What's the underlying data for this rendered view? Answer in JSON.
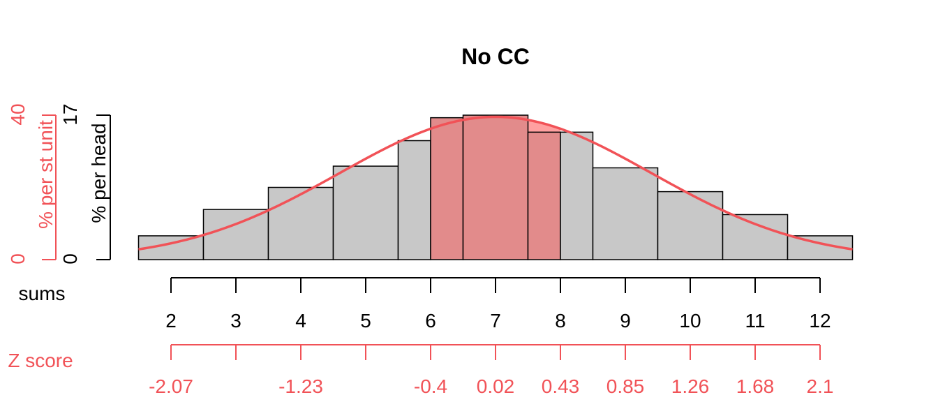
{
  "chart_data": {
    "type": "bar",
    "title": "No CC",
    "xlabel": "sums",
    "z_label": "Z score",
    "ylabel_left": "% per head",
    "ylabel_left_outer": "% per st unit",
    "ylim": [
      0,
      17
    ],
    "ylim_outer": [
      0,
      40
    ],
    "y_tick_labels": [
      "0",
      "17"
    ],
    "y_outer_tick_labels": [
      "0",
      "40"
    ],
    "bar_edges": [
      1.5,
      2.5,
      3.5,
      4.5,
      5.5,
      6.0,
      6.5,
      7.5,
      8.0,
      8.5,
      9.5,
      10.5,
      11.5,
      12.5
    ],
    "bar_values": [
      2.8,
      5.9,
      8.5,
      11.0,
      14.0,
      16.7,
      17.0,
      15.0,
      15.0,
      10.8,
      8.0,
      5.3,
      2.8
    ],
    "highlight_range": [
      6.0,
      8.0
    ],
    "x_ticks": [
      2,
      3,
      4,
      5,
      6,
      7,
      8,
      9,
      10,
      11,
      12
    ],
    "x_tick_labels": [
      "2",
      "3",
      "4",
      "5",
      "6",
      "7",
      "8",
      "9",
      "10",
      "11",
      "12"
    ],
    "z_ticks": [
      2,
      3,
      4,
      5,
      6,
      7,
      8,
      9,
      10,
      11,
      12
    ],
    "z_tick_labels": [
      "-2.07",
      "",
      "-1.23",
      "",
      "-0.4",
      "0.02",
      "0.43",
      "0.85",
      "1.26",
      "1.68",
      "2.1"
    ],
    "normal_curve": {
      "mean": 7.0,
      "sd": 2.4,
      "peak": 16.8
    },
    "colors": {
      "bar": "#c8c8c8",
      "highlight_fill": "#ffa0a0",
      "highlight_bar": "#e28b8b",
      "curve": "#f15257",
      "axis": "#000000",
      "accent_text": "#f15257"
    }
  }
}
